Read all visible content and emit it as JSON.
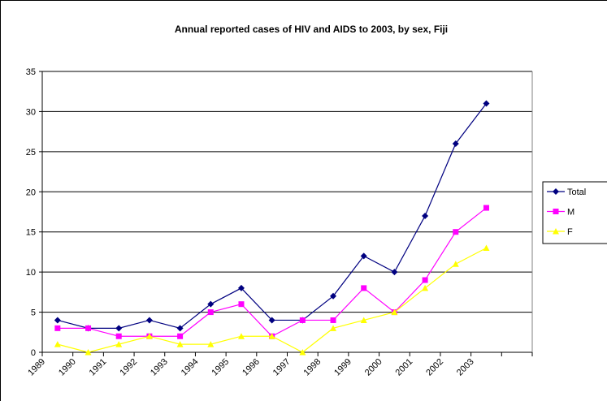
{
  "chart_data": {
    "type": "line",
    "title": "Annual reported cases of HIV and AIDS to 2003, by sex, Fiji",
    "categories": [
      "1989",
      "1990",
      "1991",
      "1992",
      "1993",
      "1994",
      "1995",
      "1996",
      "1997",
      "1998",
      "1999",
      "2000",
      "2001",
      "2002",
      "2003",
      null
    ],
    "series": [
      {
        "name": "Total",
        "color": "#000080",
        "marker": "diamond",
        "values": [
          4,
          3,
          3,
          4,
          3,
          6,
          8,
          4,
          4,
          7,
          12,
          10,
          17,
          26,
          31,
          null
        ]
      },
      {
        "name": "M",
        "color": "#ff00ff",
        "marker": "square",
        "values": [
          3,
          3,
          2,
          2,
          2,
          5,
          6,
          2,
          4,
          4,
          8,
          5,
          9,
          15,
          18,
          null
        ]
      },
      {
        "name": "F",
        "color": "#ffff00",
        "marker": "triangle",
        "values": [
          1,
          0,
          1,
          2,
          1,
          1,
          2,
          2,
          0,
          3,
          4,
          5,
          8,
          11,
          13,
          null
        ]
      }
    ],
    "ylim": [
      0,
      35
    ],
    "yticks": [
      0,
      5,
      10,
      15,
      20,
      25,
      30,
      35
    ],
    "grid": true,
    "legend": "right"
  }
}
